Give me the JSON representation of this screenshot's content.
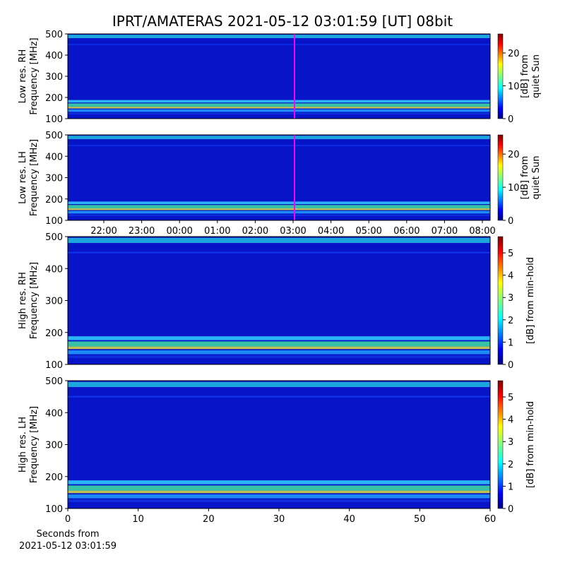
{
  "title": "IPRT/AMATERAS 2021-05-12 03:01:59 [UT]   08bit",
  "chart_data": [
    {
      "type": "heatmap",
      "ylabel": [
        "Low res. RH",
        "Frequency [MHz]"
      ],
      "ylim": [
        100,
        500
      ],
      "yticks": [
        100,
        200,
        300,
        400,
        500
      ],
      "colorbar_label": [
        "[dB] from",
        "quiet Sun"
      ],
      "clim": [
        0,
        25.8
      ],
      "cticks": [
        0,
        10,
        20
      ]
    },
    {
      "type": "heatmap",
      "ylabel": [
        "Low res. LH",
        "Frequency [MHz]"
      ],
      "ylim": [
        100,
        500
      ],
      "yticks": [
        100,
        200,
        300,
        400,
        500
      ],
      "colorbar_label": [
        "[dB] from",
        "quiet Sun"
      ],
      "clim": [
        0,
        25.8
      ],
      "cticks": [
        0,
        10,
        20
      ],
      "xticks": [
        "22:00",
        "23:00",
        "00:00",
        "01:00",
        "02:00",
        "03:00",
        "04:00",
        "05:00",
        "06:00",
        "07:00",
        "08:00"
      ]
    },
    {
      "type": "heatmap",
      "ylabel": [
        "High res. RH",
        "Frequency [MHz]"
      ],
      "ylim": [
        100,
        500
      ],
      "yticks": [
        100,
        200,
        300,
        400,
        500
      ],
      "colorbar_label": [
        "[dB] from min-hold"
      ],
      "clim": [
        0,
        5.73
      ],
      "cticks": [
        0,
        1,
        2,
        3,
        4,
        5
      ]
    },
    {
      "type": "heatmap",
      "ylabel": [
        "High res. LH",
        "Frequency [MHz]"
      ],
      "ylim": [
        100,
        500
      ],
      "yticks": [
        100,
        200,
        300,
        400,
        500
      ],
      "colorbar_label": [
        "[dB] from min-hold"
      ],
      "clim": [
        0,
        5.73
      ],
      "cticks": [
        0,
        1,
        2,
        3,
        4,
        5
      ],
      "xlim": [
        0,
        60
      ],
      "xticks": [
        0,
        10,
        20,
        30,
        40,
        50,
        60
      ],
      "xlabel": [
        "Seconds from",
        "2021-05-12 03:01:59"
      ]
    }
  ]
}
